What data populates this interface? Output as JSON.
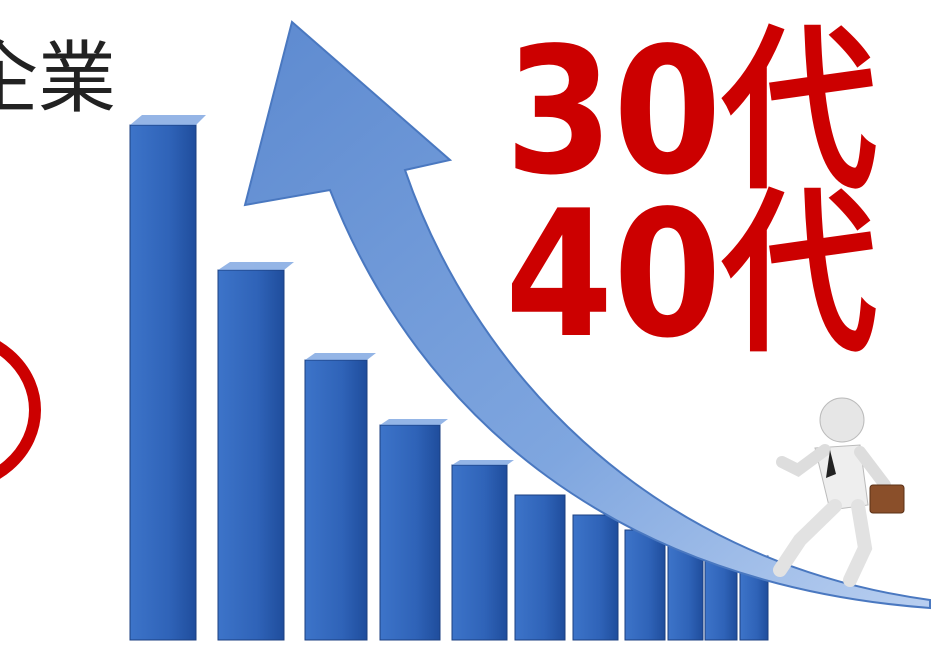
{
  "texts": {
    "heading": "企業",
    "age_line_1": "30代",
    "age_line_2": "40代"
  }
}
